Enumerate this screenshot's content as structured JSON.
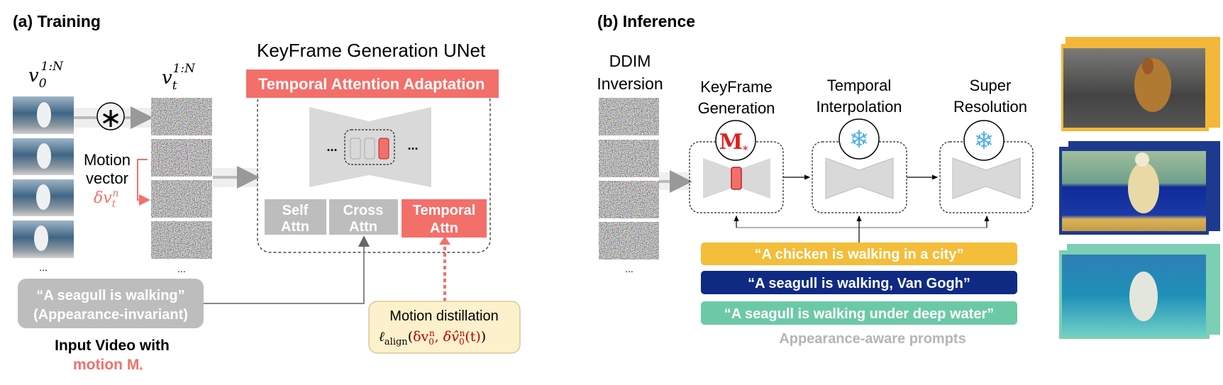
{
  "colors": {
    "accent_red": "#f36f6a",
    "block_gray": "#bdbdbd",
    "unet_gray": "#d9d9d9",
    "prompt_yellow": "#f4bd3a",
    "prompt_navy": "#0f2a83",
    "prompt_teal": "#6cc9a6",
    "distill_fill": "#fdf1cc"
  },
  "training": {
    "title": "(a) Training",
    "v0": {
      "base": "v",
      "sub": "0",
      "sup": "1:N"
    },
    "vt": {
      "base": "v",
      "sub": "t",
      "sup": "1:N"
    },
    "convolve_symbol": "∗",
    "motion_vector": {
      "line1": "Motion",
      "line2": "vector"
    },
    "delta_v": {
      "base": "δv",
      "sub": "t",
      "sup": "n"
    },
    "ellipsis": "...",
    "unet_title": "KeyFrame Generation UNet",
    "adaptation_label": "Temporal Attention Adaptation",
    "blocks": [
      {
        "line1": "Self",
        "line2": "Attn"
      },
      {
        "line1": "Cross",
        "line2": "Attn"
      },
      {
        "line1": "Temporal",
        "line2": "Attn"
      }
    ],
    "prompt": {
      "line1": "“A seagull is walking”",
      "line2": "(Appearance-invariant)"
    },
    "input_caption": "Input Video with",
    "motion_caption": "motion M",
    "motion_caption_sub": "*",
    "distillation": {
      "title": "Motion distillation",
      "loss_symbol": "ℓ",
      "loss_sub": "align",
      "arg1_base": "δv",
      "arg1_sub": "0",
      "arg1_sup": "n",
      "arg2_base": "δv̂",
      "arg2_sub": "0",
      "arg2_sup": "n",
      "arg2_tail": "(t)"
    }
  },
  "inference": {
    "title": "(b) Inference",
    "ddim": {
      "line1": "DDIM",
      "line2": "Inversion"
    },
    "ellipsis": "...",
    "stages": [
      {
        "line1": "KeyFrame",
        "line2": "Generation",
        "badge": "M",
        "badge_sub": "*",
        "icon": "motion-badge"
      },
      {
        "line1": "Temporal",
        "line2": "Interpolation",
        "icon": "snowflake-icon"
      },
      {
        "line1": "Super",
        "line2": "Resolution",
        "icon": "snowflake-icon"
      }
    ],
    "snowflake": "❄",
    "prompts": [
      {
        "text": "“A chicken is walking in a city”",
        "color": "#f4bd3a"
      },
      {
        "text": "“A seagull is walking, Van Gogh”",
        "color": "#0f2a83"
      },
      {
        "text": "“A seagull is walking under deep water”",
        "color": "#6cc9a6"
      }
    ],
    "prompts_caption": "Appearance-aware prompts",
    "outputs": [
      {
        "frame_color": "#f3b73a"
      },
      {
        "frame_color": "#1d3a8f"
      },
      {
        "frame_color": "#7ccfb4"
      }
    ]
  }
}
